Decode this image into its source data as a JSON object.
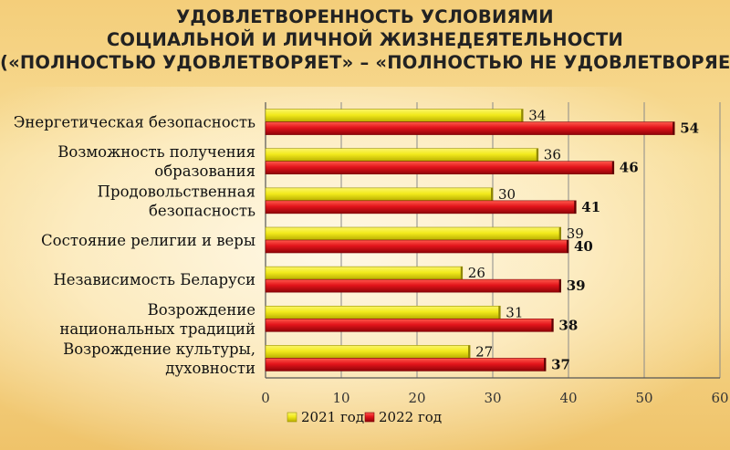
{
  "chart_data": {
    "type": "bar",
    "orientation": "horizontal",
    "title_lines": [
      "УДОВЛЕТВОРЕННОСТЬ УСЛОВИЯМИ",
      "СОЦИАЛЬНОЙ И ЛИЧНОЙ ЖИЗНЕДЕЯТЕЛЬНОСТИ",
      "(«ПОЛНОСТЬЮ УДОВЛЕТВОРЯЕТ» – «ПОЛНОСТЬЮ НЕ УДОВЛЕТВОРЯЕТ»)"
    ],
    "categories": [
      [
        "Энергетическая безопасность"
      ],
      [
        "Возможность получения",
        "образования"
      ],
      [
        "Продовольственная",
        "безопасность"
      ],
      [
        "Состояние религии и веры"
      ],
      [
        "Независимость Беларуси"
      ],
      [
        "Возрождение",
        "национальных традиций"
      ],
      [
        "Возрождение культуры,",
        "духовности"
      ]
    ],
    "series": [
      {
        "name": "2021 год",
        "color": "#f2ea1c",
        "values": [
          34,
          36,
          30,
          39,
          26,
          31,
          27
        ]
      },
      {
        "name": "2022 год",
        "color": "#e3141b",
        "values": [
          54,
          46,
          41,
          40,
          39,
          38,
          37
        ]
      }
    ],
    "xlim": [
      0,
      60
    ],
    "xticks": [
      "0",
      "10",
      "20",
      "30",
      "40",
      "50",
      "60"
    ],
    "grid": true,
    "legend_position": "bottom"
  }
}
